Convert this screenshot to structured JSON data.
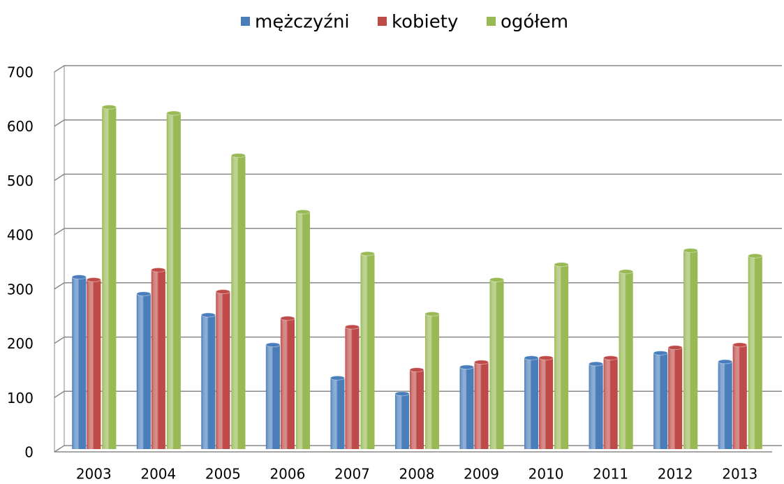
{
  "chart_data": {
    "type": "bar",
    "categories": [
      "2003",
      "2004",
      "2005",
      "2006",
      "2007",
      "2008",
      "2009",
      "2010",
      "2011",
      "2012",
      "2013"
    ],
    "series": [
      {
        "name": "mężczyźni",
        "color": "#4a7ebb",
        "values": [
          317,
          286,
          247,
          192,
          131,
          102,
          151,
          168,
          157,
          177,
          161
        ]
      },
      {
        "name": "kobiety",
        "color": "#be4b48",
        "values": [
          312,
          330,
          290,
          241,
          225,
          146,
          160,
          168,
          168,
          187,
          192
        ]
      },
      {
        "name": "ogółem",
        "color": "#98b954",
        "values": [
          630,
          619,
          541,
          437,
          360,
          249,
          312,
          340,
          327,
          366,
          356
        ]
      }
    ],
    "ylim": [
      0,
      700
    ],
    "yticks": [
      0,
      100,
      200,
      300,
      400,
      500,
      600,
      700
    ],
    "grid": true,
    "legend": "top"
  }
}
